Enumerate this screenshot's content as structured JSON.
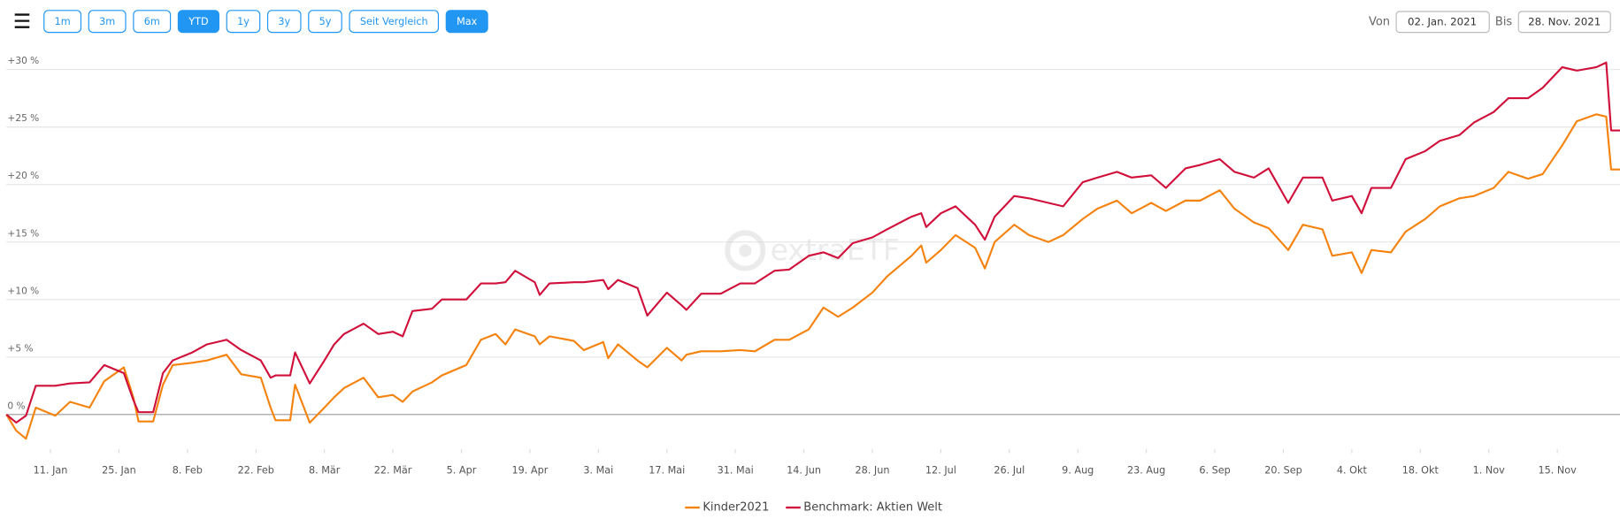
{
  "controls": {
    "buttons": [
      {
        "label": "1m",
        "active": false
      },
      {
        "label": "3m",
        "active": false
      },
      {
        "label": "6m",
        "active": false
      },
      {
        "label": "YTD",
        "active": true
      },
      {
        "label": "1y",
        "active": false
      },
      {
        "label": "3y",
        "active": false
      },
      {
        "label": "5y",
        "active": false
      },
      {
        "label": "Seit Vergleich",
        "active": false
      },
      {
        "label": "Max",
        "active": true
      }
    ],
    "from_label": "Von",
    "from_date": "02. Jan. 2021",
    "to_label": "Bis",
    "to_date": "28. Nov. 2021"
  },
  "chart_data": {
    "type": "line",
    "watermark": "extraETF",
    "x": [
      "2021-01-02",
      "2021-01-04",
      "2021-01-06",
      "2021-01-08",
      "2021-01-12",
      "2021-01-15",
      "2021-01-19",
      "2021-01-22",
      "2021-01-26",
      "2021-01-28",
      "2021-01-29",
      "2021-02-01",
      "2021-02-03",
      "2021-02-05",
      "2021-02-09",
      "2021-02-12",
      "2021-02-16",
      "2021-02-19",
      "2021-02-23",
      "2021-02-25",
      "2021-02-26",
      "2021-03-01",
      "2021-03-02",
      "2021-03-05",
      "2021-03-08",
      "2021-03-10",
      "2021-03-12",
      "2021-03-16",
      "2021-03-19",
      "2021-03-22",
      "2021-03-24",
      "2021-03-26",
      "2021-03-30",
      "2021-04-01",
      "2021-04-06",
      "2021-04-09",
      "2021-04-12",
      "2021-04-14",
      "2021-04-16",
      "2021-04-20",
      "2021-04-21",
      "2021-04-23",
      "2021-04-28",
      "2021-04-30",
      "2021-05-04",
      "2021-05-05",
      "2021-05-07",
      "2021-05-11",
      "2021-05-13",
      "2021-05-17",
      "2021-05-20",
      "2021-05-21",
      "2021-05-24",
      "2021-05-28",
      "2021-06-01",
      "2021-06-04",
      "2021-06-08",
      "2021-06-11",
      "2021-06-15",
      "2021-06-18",
      "2021-06-21",
      "2021-06-24",
      "2021-06-28",
      "2021-07-01",
      "2021-07-06",
      "2021-07-08",
      "2021-07-09",
      "2021-07-12",
      "2021-07-15",
      "2021-07-19",
      "2021-07-21",
      "2021-07-23",
      "2021-07-27",
      "2021-07-30",
      "2021-08-03",
      "2021-08-06",
      "2021-08-10",
      "2021-08-13",
      "2021-08-17",
      "2021-08-20",
      "2021-08-24",
      "2021-08-27",
      "2021-08-31",
      "2021-09-03",
      "2021-09-07",
      "2021-09-10",
      "2021-09-14",
      "2021-09-17",
      "2021-09-21",
      "2021-09-24",
      "2021-09-28",
      "2021-09-30",
      "2021-10-04",
      "2021-10-06",
      "2021-10-08",
      "2021-10-12",
      "2021-10-15",
      "2021-10-19",
      "2021-10-22",
      "2021-10-26",
      "2021-10-29",
      "2021-11-02",
      "2021-11-05",
      "2021-11-09",
      "2021-11-12",
      "2021-11-16",
      "2021-11-19",
      "2021-11-23",
      "2021-11-25",
      "2021-11-26",
      "2021-11-28"
    ],
    "xlim": [
      "2021-01-02",
      "2021-11-28"
    ],
    "xticks": [
      {
        "value": "2021-01-11",
        "label": "11. Jan"
      },
      {
        "value": "2021-01-25",
        "label": "25. Jan"
      },
      {
        "value": "2021-02-08",
        "label": "8. Feb"
      },
      {
        "value": "2021-02-22",
        "label": "22. Feb"
      },
      {
        "value": "2021-03-08",
        "label": "8. Mär"
      },
      {
        "value": "2021-03-22",
        "label": "22. Mär"
      },
      {
        "value": "2021-04-05",
        "label": "5. Apr"
      },
      {
        "value": "2021-04-19",
        "label": "19. Apr"
      },
      {
        "value": "2021-05-03",
        "label": "3. Mai"
      },
      {
        "value": "2021-05-17",
        "label": "17. Mai"
      },
      {
        "value": "2021-05-31",
        "label": "31. Mai"
      },
      {
        "value": "2021-06-14",
        "label": "14. Jun"
      },
      {
        "value": "2021-06-28",
        "label": "28. Jun"
      },
      {
        "value": "2021-07-12",
        "label": "12. Jul"
      },
      {
        "value": "2021-07-26",
        "label": "26. Jul"
      },
      {
        "value": "2021-08-09",
        "label": "9. Aug"
      },
      {
        "value": "2021-08-23",
        "label": "23. Aug"
      },
      {
        "value": "2021-09-06",
        "label": "6. Sep"
      },
      {
        "value": "2021-09-20",
        "label": "20. Sep"
      },
      {
        "value": "2021-10-04",
        "label": "4. Okt"
      },
      {
        "value": "2021-10-18",
        "label": "18. Okt"
      },
      {
        "value": "2021-11-01",
        "label": "1. Nov"
      },
      {
        "value": "2021-11-15",
        "label": "15. Nov"
      }
    ],
    "ylim": [
      -3,
      31.5
    ],
    "yticks": [
      {
        "value": 0,
        "label": "0 %"
      },
      {
        "value": 5,
        "label": "+5 %"
      },
      {
        "value": 10,
        "label": "+10 %"
      },
      {
        "value": 15,
        "label": "+15 %"
      },
      {
        "value": 20,
        "label": "+20 %"
      },
      {
        "value": 25,
        "label": "+25 %"
      },
      {
        "value": 30,
        "label": "+30 %"
      }
    ],
    "grid": true,
    "legend": "bottom",
    "series": [
      {
        "name": "Kinder2021",
        "color": "#f5820d",
        "values": [
          0,
          -1.4,
          -2.1,
          0.6,
          -0.1,
          1.1,
          0.6,
          2.9,
          4.1,
          1.4,
          -0.6,
          -0.6,
          2.6,
          4.3,
          4.5,
          4.7,
          5.2,
          3.5,
          3.2,
          0.6,
          -0.5,
          -0.5,
          2.6,
          -0.7,
          0.6,
          1.5,
          2.3,
          3.2,
          1.5,
          1.7,
          1.1,
          2.0,
          2.8,
          3.4,
          4.3,
          6.5,
          7.0,
          6.1,
          7.4,
          6.8,
          6.1,
          6.8,
          6.4,
          5.6,
          6.3,
          4.9,
          6.1,
          4.7,
          4.1,
          5.8,
          4.7,
          5.2,
          5.5,
          5.5,
          5.6,
          5.5,
          6.5,
          6.5,
          7.4,
          9.3,
          8.5,
          9.3,
          10.6,
          12.0,
          13.8,
          14.7,
          13.2,
          14.3,
          15.6,
          14.5,
          12.7,
          15.0,
          16.5,
          15.6,
          15.0,
          15.6,
          17.0,
          17.9,
          18.6,
          17.5,
          18.4,
          17.7,
          18.6,
          18.6,
          19.5,
          17.9,
          16.7,
          16.2,
          14.3,
          16.5,
          16.1,
          13.8,
          14.1,
          12.3,
          14.3,
          14.1,
          15.9,
          17.0,
          18.1,
          18.8,
          19.0,
          19.7,
          21.1,
          20.5,
          20.9,
          23.4,
          25.5,
          26.1,
          25.9,
          21.3,
          21.3
        ]
      },
      {
        "name": "Benchmark: Aktien Welt",
        "color": "#d0103a",
        "values": [
          0,
          -0.7,
          -0.1,
          2.5,
          2.5,
          2.7,
          2.8,
          4.3,
          3.6,
          1.2,
          0.2,
          0.2,
          3.6,
          4.7,
          5.4,
          6.1,
          6.5,
          5.6,
          4.7,
          3.2,
          3.4,
          3.4,
          5.4,
          2.7,
          4.7,
          6.1,
          7.0,
          7.9,
          7.0,
          7.2,
          6.8,
          9.0,
          9.2,
          10.0,
          10.0,
          11.4,
          11.4,
          11.5,
          12.5,
          11.5,
          10.4,
          11.4,
          11.5,
          11.5,
          11.7,
          10.9,
          11.7,
          11.0,
          8.6,
          10.6,
          9.5,
          9.1,
          10.5,
          10.5,
          11.4,
          11.4,
          12.5,
          12.6,
          13.8,
          14.1,
          13.6,
          14.9,
          15.4,
          16.1,
          17.2,
          17.5,
          16.3,
          17.5,
          18.1,
          16.5,
          15.2,
          17.2,
          19.0,
          18.8,
          18.4,
          18.1,
          20.2,
          20.6,
          21.1,
          20.6,
          20.8,
          19.7,
          21.4,
          21.7,
          22.2,
          21.1,
          20.6,
          21.4,
          18.4,
          20.6,
          20.6,
          18.6,
          19.0,
          17.5,
          19.7,
          19.7,
          22.2,
          22.9,
          23.8,
          24.3,
          25.4,
          26.3,
          27.5,
          27.5,
          28.4,
          30.2,
          29.9,
          30.2,
          30.6,
          24.7,
          24.7
        ]
      }
    ]
  }
}
